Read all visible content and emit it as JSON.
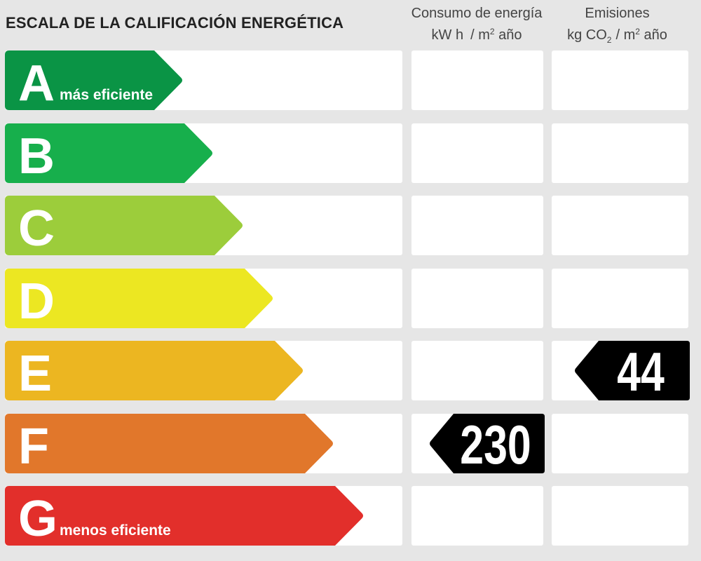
{
  "title": "ESCALA DE LA CALIFICACIÓN ENERGÉTICA",
  "columns": {
    "energy": {
      "line1": "Consumo de energía",
      "unit_a": "kW h",
      "unit_slash": "/ m",
      "unit_sup": "2",
      "unit_year": "año"
    },
    "emissions": {
      "line1": "Emisiones",
      "unit_a": "kg CO",
      "unit_sub": "2",
      "unit_slash": "/ m",
      "unit_sup": "2",
      "unit_year": "año"
    }
  },
  "rating_scale": [
    {
      "letter": "A",
      "note": "más eficiente",
      "color": "#0a9445"
    },
    {
      "letter": "B",
      "note": "",
      "color": "#17af4c"
    },
    {
      "letter": "C",
      "note": "",
      "color": "#9ccd3b"
    },
    {
      "letter": "D",
      "note": "",
      "color": "#ece722"
    },
    {
      "letter": "E",
      "note": "",
      "color": "#ecb621"
    },
    {
      "letter": "F",
      "note": "",
      "color": "#e1772b"
    },
    {
      "letter": "G",
      "note": "menos eficiente",
      "color": "#e22f2b"
    }
  ],
  "energy_consumption": {
    "value": "230",
    "rating": "F",
    "marker_color": "#000000"
  },
  "emissions": {
    "value": "44",
    "rating": "E",
    "marker_color": "#000000"
  }
}
